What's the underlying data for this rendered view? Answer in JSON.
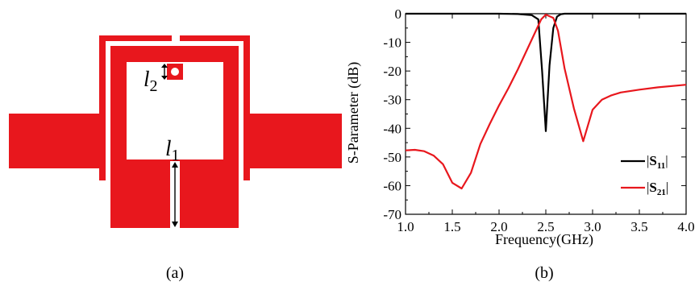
{
  "figure": {
    "panels": [
      {
        "caption": "(a)",
        "dimension_labels": [
          {
            "base": "l",
            "sub": "2"
          },
          {
            "base": "l",
            "sub": "1"
          }
        ],
        "colors": {
          "metal": "#e8171d",
          "background": "#ffffff",
          "arrow": "#000000"
        }
      },
      {
        "caption": "(b)"
      }
    ]
  },
  "chart_data": {
    "type": "line",
    "xlabel": "Frequency(GHz)",
    "ylabel": "S-Parameter (dB)",
    "xlim": [
      1.0,
      4.0
    ],
    "ylim": [
      -70,
      0
    ],
    "xticks": [
      1.0,
      1.5,
      2.0,
      2.5,
      3.0,
      3.5,
      4.0
    ],
    "yticks": [
      0,
      -10,
      -20,
      -30,
      -40,
      -50,
      -60,
      -70
    ],
    "grid": false,
    "legend_position": "bottom-right",
    "series": [
      {
        "name": "|S11|",
        "legend_base": "S",
        "legend_sub": "11",
        "color": "#000000",
        "x": [
          1.0,
          1.5,
          2.0,
          2.2,
          2.35,
          2.42,
          2.46,
          2.5,
          2.54,
          2.58,
          2.62,
          2.66,
          2.7,
          3.0,
          3.5,
          4.0
        ],
        "y": [
          0,
          0,
          0,
          -0.1,
          -0.5,
          -2,
          -20,
          -41,
          -18,
          -5,
          -1,
          -0.2,
          0,
          0,
          0,
          0
        ]
      },
      {
        "name": "|S21|",
        "legend_base": "S",
        "legend_sub": "21",
        "color": "#e8171d",
        "x": [
          1.0,
          1.1,
          1.2,
          1.3,
          1.4,
          1.5,
          1.6,
          1.7,
          1.8,
          1.9,
          2.0,
          2.1,
          2.2,
          2.3,
          2.4,
          2.45,
          2.5,
          2.58,
          2.63,
          2.7,
          2.8,
          2.9,
          3.0,
          3.1,
          3.2,
          3.3,
          3.5,
          3.7,
          4.0
        ],
        "y": [
          -47.7,
          -47.5,
          -48,
          -49.5,
          -52.5,
          -59,
          -61,
          -55.5,
          -45.5,
          -38.5,
          -32,
          -26,
          -19.5,
          -12.5,
          -5.5,
          -2,
          -0.3,
          -1.5,
          -6,
          -19,
          -33,
          -44.5,
          -33.5,
          -30,
          -28.5,
          -27.5,
          -26.5,
          -25.7,
          -24.8
        ]
      }
    ]
  }
}
